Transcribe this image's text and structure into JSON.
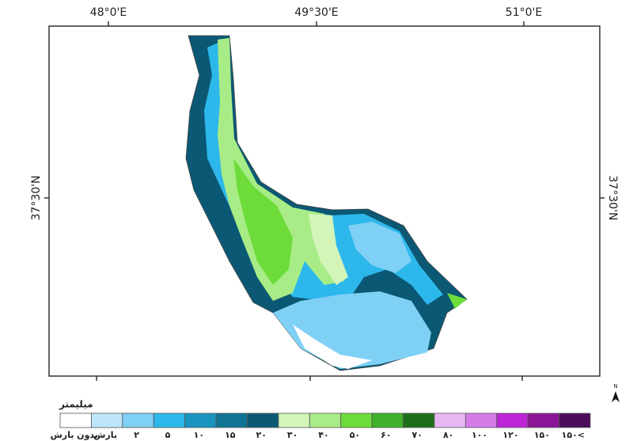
{
  "map": {
    "lon_labels": [
      "48°0'E",
      "49°30'E",
      "51°0'E"
    ],
    "lat_labels": [
      "37°30'N",
      "37°30'N"
    ],
    "north_label": "N"
  },
  "legend": {
    "title": "میلیمتر",
    "items": [
      {
        "label": "بدون بارش",
        "color": "#ffffff"
      },
      {
        "label": "بارش",
        "color": "#bfe6fb"
      },
      {
        "label": "۲",
        "color": "#7fd0f5"
      },
      {
        "label": "۵",
        "color": "#2db8ec"
      },
      {
        "label": "۱۰",
        "color": "#1a94c0"
      },
      {
        "label": "۱۵",
        "color": "#0f7394"
      },
      {
        "label": "۲۰",
        "color": "#0b5874"
      },
      {
        "label": "۳۰",
        "color": "#d3f5b9"
      },
      {
        "label": "۴۰",
        "color": "#a8ec87"
      },
      {
        "label": "۵۰",
        "color": "#6ddc3a"
      },
      {
        "label": "۶۰",
        "color": "#3fb12a"
      },
      {
        "label": "۷۰",
        "color": "#1e6f19"
      },
      {
        "label": "۸۰",
        "color": "#e8b7f1"
      },
      {
        "label": "۱۰۰",
        "color": "#d57be8"
      },
      {
        "label": "۱۲۰",
        "color": "#bd25d6"
      },
      {
        "label": "۱۵۰",
        "color": "#8a1596"
      },
      {
        "label": "۱۵۰<",
        "color": "#4b0c5a"
      }
    ]
  }
}
